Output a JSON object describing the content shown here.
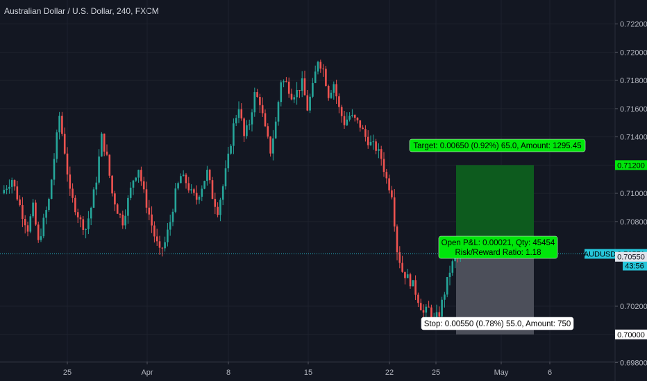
{
  "title": "Australian Dollar / U.S. Dollar, 240, FXCM",
  "colors": {
    "background": "#131722",
    "up": "#26a69a",
    "down": "#ef5350",
    "grid": "#1e222d",
    "axis_text": "#b2b5be",
    "price_line": "#26c6da",
    "target_zone": "#0d5b1e",
    "stop_zone": "#4c4f5a",
    "target_label": "#00e60b",
    "info_label": "#00e60b",
    "stop_label": "#ffffff",
    "price_tag": "#26c6da",
    "current_tag": "#e0e3eb"
  },
  "chart_data": {
    "type": "candlestick",
    "symbol": "AUDUSD",
    "timeframe": "240",
    "x_ticks": [
      "25",
      "Apr",
      "8",
      "15",
      "22",
      "25",
      "May",
      "6"
    ],
    "y_ticks": [
      "0.72200",
      "0.72000",
      "0.71800",
      "0.71600",
      "0.71400",
      "0.71200",
      "0.71000",
      "0.70800",
      "0.70200",
      "0.70000",
      "0.69800"
    ],
    "ylim": [
      0.6967,
      0.7237
    ],
    "current_price": {
      "label": "AUDUSD",
      "value": "0.70571",
      "countdown": "43:56"
    },
    "last_price": {
      "value": "0.70550"
    },
    "position": {
      "direction": "long",
      "entry": 0.7055,
      "target": 0.712,
      "stop": 0.7,
      "target_label": "Target: 0.00650 (0.92%) 65.0, Amount: 1295.45",
      "stop_label": "Stop: 0.00550 (0.78%) 55.0, Amount: 750",
      "pnl_label": "Open P&L: 0.00021, Qty: 45454",
      "rr_label": "Risk/Reward Ratio: 1.18"
    },
    "close_path": [
      [
        0,
        0.71
      ],
      [
        4,
        0.711
      ],
      [
        8,
        0.7085
      ],
      [
        10,
        0.7075
      ],
      [
        12,
        0.709
      ],
      [
        14,
        0.7065
      ],
      [
        16,
        0.708
      ],
      [
        18,
        0.7095
      ],
      [
        20,
        0.7125
      ],
      [
        22,
        0.7155
      ],
      [
        24,
        0.713
      ],
      [
        26,
        0.71
      ],
      [
        28,
        0.709
      ],
      [
        30,
        0.708
      ],
      [
        32,
        0.7075
      ],
      [
        34,
        0.709
      ],
      [
        36,
        0.711
      ],
      [
        38,
        0.714
      ],
      [
        40,
        0.7125
      ],
      [
        42,
        0.71
      ],
      [
        44,
        0.7088
      ],
      [
        46,
        0.708
      ],
      [
        48,
        0.7095
      ],
      [
        50,
        0.711
      ],
      [
        52,
        0.7118
      ],
      [
        54,
        0.71
      ],
      [
        56,
        0.7085
      ],
      [
        58,
        0.707
      ],
      [
        60,
        0.7058
      ],
      [
        62,
        0.7065
      ],
      [
        64,
        0.708
      ],
      [
        66,
        0.71
      ],
      [
        68,
        0.7112
      ],
      [
        70,
        0.7108
      ],
      [
        72,
        0.71
      ],
      [
        74,
        0.7096
      ],
      [
        76,
        0.7105
      ],
      [
        78,
        0.7115
      ],
      [
        80,
        0.7098
      ],
      [
        82,
        0.7088
      ],
      [
        84,
        0.7105
      ],
      [
        86,
        0.7125
      ],
      [
        88,
        0.7148
      ],
      [
        90,
        0.7162
      ],
      [
        92,
        0.714
      ],
      [
        94,
        0.715
      ],
      [
        96,
        0.717
      ],
      [
        98,
        0.7165
      ],
      [
        100,
        0.7145
      ],
      [
        102,
        0.713
      ],
      [
        104,
        0.715
      ],
      [
        106,
        0.718
      ],
      [
        108,
        0.7178
      ],
      [
        110,
        0.717
      ],
      [
        112,
        0.7172
      ],
      [
        114,
        0.7178
      ],
      [
        116,
        0.716
      ],
      [
        118,
        0.7175
      ],
      [
        120,
        0.7195
      ],
      [
        122,
        0.7188
      ],
      [
        124,
        0.717
      ],
      [
        126,
        0.7178
      ],
      [
        128,
        0.716
      ],
      [
        130,
        0.715
      ],
      [
        132,
        0.7155
      ],
      [
        134,
        0.7152
      ],
      [
        136,
        0.7148
      ],
      [
        138,
        0.714
      ],
      [
        140,
        0.7135
      ],
      [
        142,
        0.7132
      ],
      [
        144,
        0.7125
      ],
      [
        146,
        0.711
      ],
      [
        148,
        0.71
      ],
      [
        150,
        0.706
      ],
      [
        152,
        0.7045
      ],
      [
        154,
        0.704
      ],
      [
        156,
        0.7035
      ],
      [
        158,
        0.7025
      ],
      [
        160,
        0.7015
      ],
      [
        162,
        0.7018
      ],
      [
        164,
        0.701
      ],
      [
        166,
        0.7015
      ],
      [
        168,
        0.703
      ],
      [
        170,
        0.7045
      ],
      [
        172,
        0.7055
      ],
      [
        174,
        0.7056
      ]
    ]
  }
}
